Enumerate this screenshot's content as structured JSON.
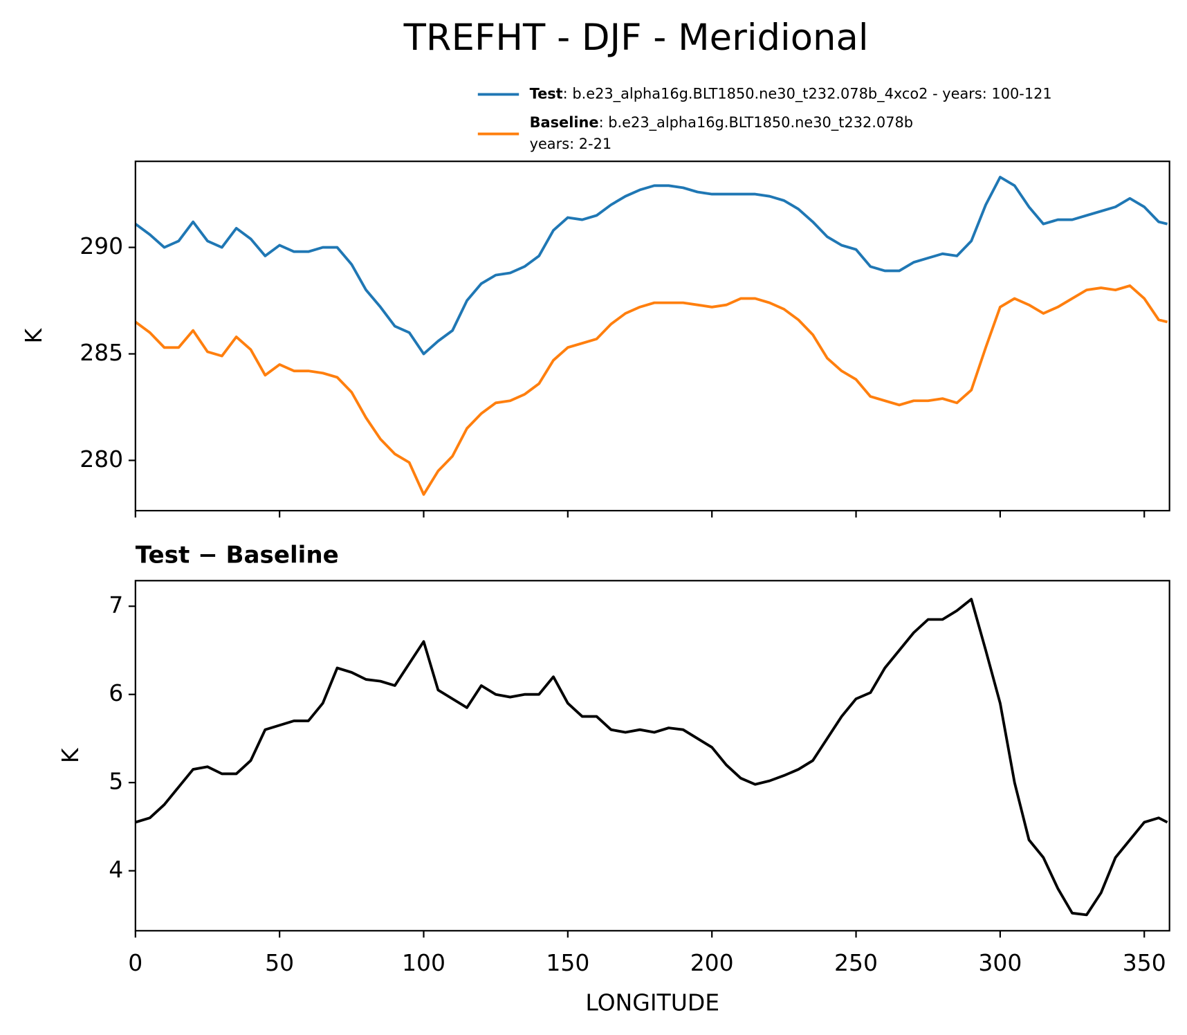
{
  "title": "TREFHT - DJF - Meridional",
  "chart_data": [
    {
      "type": "line",
      "ylabel": "K",
      "x": [
        0,
        5,
        10,
        15,
        20,
        25,
        30,
        35,
        40,
        45,
        50,
        55,
        60,
        65,
        70,
        75,
        80,
        85,
        90,
        95,
        100,
        105,
        110,
        115,
        120,
        125,
        130,
        135,
        140,
        145,
        150,
        155,
        160,
        165,
        170,
        175,
        180,
        185,
        190,
        195,
        200,
        205,
        210,
        215,
        220,
        225,
        230,
        235,
        240,
        245,
        250,
        255,
        260,
        265,
        270,
        275,
        280,
        285,
        290,
        295,
        300,
        305,
        310,
        315,
        320,
        325,
        330,
        335,
        340,
        345,
        350,
        355,
        358
      ],
      "series": [
        {
          "name": "Test",
          "description": [
            ": b.e23_alpha16g.BLT1850.ne30_t232.078b_4xco2 - years: 100-121"
          ],
          "color": "#1f77b4",
          "values": [
            291.1,
            290.6,
            290.0,
            290.3,
            291.2,
            290.3,
            290.0,
            290.9,
            290.4,
            289.6,
            290.1,
            289.8,
            289.8,
            290.0,
            290.0,
            289.2,
            288.0,
            287.2,
            286.3,
            286.0,
            285.0,
            285.6,
            286.1,
            287.5,
            288.3,
            288.7,
            288.8,
            289.1,
            289.6,
            290.8,
            291.4,
            291.3,
            291.5,
            292.0,
            292.4,
            292.7,
            292.9,
            292.9,
            292.8,
            292.6,
            292.5,
            292.5,
            292.5,
            292.5,
            292.4,
            292.2,
            291.8,
            291.2,
            290.5,
            290.1,
            289.9,
            289.1,
            288.9,
            288.9,
            289.3,
            289.5,
            289.7,
            289.6,
            290.3,
            292.0,
            293.3,
            292.9,
            291.9,
            291.1,
            291.3,
            291.3,
            291.5,
            291.7,
            291.9,
            292.3,
            291.9,
            291.2,
            291.1
          ]
        },
        {
          "name": "Baseline",
          "description": [
            ": b.e23_alpha16g.BLT1850.ne30_t232.078b",
            "years: 2-21"
          ],
          "color": "#ff7f0e",
          "values": [
            286.5,
            286.0,
            285.3,
            285.3,
            286.1,
            285.1,
            284.9,
            285.8,
            285.2,
            284.0,
            284.5,
            284.2,
            284.2,
            284.1,
            283.9,
            283.2,
            282.0,
            281.0,
            280.3,
            279.9,
            278.4,
            279.5,
            280.2,
            281.5,
            282.2,
            282.7,
            282.8,
            283.1,
            283.6,
            284.7,
            285.3,
            285.5,
            285.7,
            286.4,
            286.9,
            287.2,
            287.4,
            287.4,
            287.4,
            287.3,
            287.2,
            287.3,
            287.6,
            287.6,
            287.4,
            287.1,
            286.6,
            285.9,
            284.8,
            284.2,
            283.8,
            283.0,
            282.8,
            282.6,
            282.8,
            282.8,
            282.9,
            282.7,
            283.3,
            285.3,
            287.2,
            287.6,
            287.3,
            286.9,
            287.2,
            287.6,
            288.0,
            288.1,
            288.0,
            288.2,
            287.6,
            286.6,
            286.5
          ]
        }
      ],
      "xlim": [
        0,
        358.75
      ],
      "xticks": [
        0,
        50,
        100,
        150,
        200,
        250,
        300,
        350
      ],
      "xticklabels": false,
      "ylim": [
        277.64,
        294.04
      ],
      "yticks": [
        280,
        285,
        290
      ]
    },
    {
      "type": "line",
      "title": "Test − Baseline",
      "xlabel": "LONGITUDE",
      "ylabel": "K",
      "x": [
        0,
        5,
        10,
        15,
        20,
        25,
        30,
        35,
        40,
        45,
        50,
        55,
        60,
        65,
        70,
        75,
        80,
        85,
        90,
        95,
        100,
        105,
        110,
        115,
        120,
        125,
        130,
        135,
        140,
        145,
        150,
        155,
        160,
        165,
        170,
        175,
        180,
        185,
        190,
        195,
        200,
        205,
        210,
        215,
        220,
        225,
        230,
        235,
        240,
        245,
        250,
        255,
        260,
        265,
        270,
        275,
        280,
        285,
        290,
        295,
        300,
        305,
        310,
        315,
        320,
        325,
        330,
        335,
        340,
        345,
        350,
        355,
        358
      ],
      "series": [
        {
          "color": "#000000",
          "values": [
            4.55,
            4.6,
            4.75,
            4.95,
            5.15,
            5.18,
            5.1,
            5.1,
            5.25,
            5.6,
            5.65,
            5.7,
            5.7,
            5.9,
            6.3,
            6.25,
            6.17,
            6.15,
            6.1,
            6.35,
            6.6,
            6.05,
            5.95,
            5.85,
            6.1,
            6.0,
            5.97,
            6.0,
            6.0,
            6.2,
            5.9,
            5.75,
            5.75,
            5.6,
            5.57,
            5.6,
            5.57,
            5.62,
            5.6,
            5.5,
            5.4,
            5.2,
            5.05,
            4.98,
            5.02,
            5.08,
            5.15,
            5.25,
            5.5,
            5.75,
            5.95,
            6.02,
            6.3,
            6.5,
            6.7,
            6.85,
            6.85,
            6.95,
            7.08,
            6.5,
            5.9,
            5.0,
            4.35,
            4.15,
            3.8,
            3.52,
            3.5,
            3.75,
            4.15,
            4.35,
            4.55,
            4.6,
            4.55
          ]
        }
      ],
      "xlim": [
        0,
        358.75
      ],
      "xticks": [
        0,
        50,
        100,
        150,
        200,
        250,
        300,
        350
      ],
      "ylim": [
        3.32,
        7.29
      ],
      "yticks": [
        4,
        5,
        6,
        7
      ]
    }
  ]
}
